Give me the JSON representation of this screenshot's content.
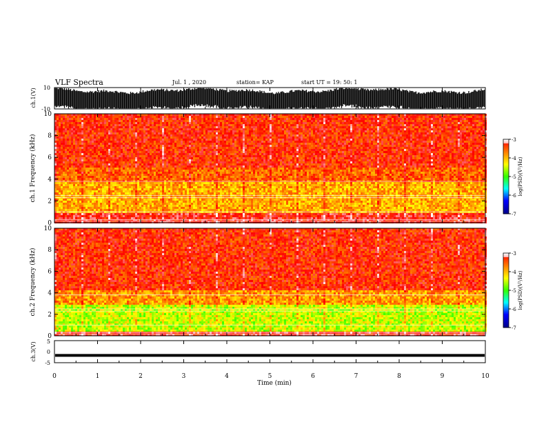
{
  "header": {
    "title": "VLF Spectra",
    "date": "Jul. 1 , 2020",
    "station": "station= KAP",
    "start": "start UT = 19: 50: 1"
  },
  "colors": {
    "background": "#ffffff",
    "axis": "#000000",
    "colormap": [
      "#00008f",
      "#0000ff",
      "#00ffff",
      "#33ff00",
      "#ffff00",
      "#ff7f00",
      "#ff0000",
      "#ffffff"
    ]
  },
  "chart_data": [
    {
      "type": "line",
      "ylabel": "ch.1(V)",
      "ylim": [
        -10,
        10
      ],
      "yticks": [
        "10",
        "-10"
      ],
      "series": [
        {
          "style": "dense noise, black, roughly filling -8..8 V"
        }
      ]
    },
    {
      "type": "heatmap",
      "ylabel": "ch.1 Frequency (kHz)",
      "ylim": [
        0,
        10
      ],
      "yticks": [
        "0",
        "2",
        "4",
        "6",
        "8",
        "10"
      ],
      "colorbar": {
        "label": "log(PSD)(V²/Hz)",
        "ticks": [
          "-3",
          "-4",
          "-5",
          "-6",
          "-7"
        ],
        "range": [
          -7,
          -3
        ]
      },
      "bands": [
        {
          "from_khz": 0.8,
          "to_khz": 3.8,
          "level": -3.9
        },
        {
          "from_khz": 3.8,
          "to_khz": 5.0,
          "level": -3.5
        },
        {
          "from_khz": 5.0,
          "to_khz": 10.0,
          "level": -3.2
        }
      ]
    },
    {
      "type": "heatmap",
      "ylabel": "ch.2 Frequency (kHz)",
      "ylim": [
        0,
        10
      ],
      "yticks": [
        "0",
        "2",
        "4",
        "6",
        "8",
        "10"
      ],
      "colorbar": {
        "label": "log(PSD)(V²/Hz)",
        "ticks": [
          "-3",
          "-4",
          "-5",
          "-6",
          "-7"
        ],
        "range": [
          -7,
          -3
        ]
      },
      "bands": [
        {
          "from_khz": 0.4,
          "to_khz": 2.9,
          "level": -4.5
        },
        {
          "from_khz": 2.9,
          "to_khz": 4.3,
          "level": -3.8
        },
        {
          "from_khz": 4.3,
          "to_khz": 10.0,
          "level": -3.2
        }
      ]
    },
    {
      "type": "line",
      "ylabel": "ch.3(V)",
      "ylim": [
        -5,
        5
      ],
      "yticks": [
        "5",
        "0",
        "-5"
      ],
      "series": [
        {
          "style": "flat black band near -1.7 V"
        }
      ]
    }
  ],
  "xaxis": {
    "label": "Time (min)",
    "xlim": [
      0,
      10
    ],
    "ticks": [
      "0",
      "1",
      "2",
      "3",
      "4",
      "5",
      "6",
      "7",
      "8",
      "9",
      "10"
    ]
  }
}
